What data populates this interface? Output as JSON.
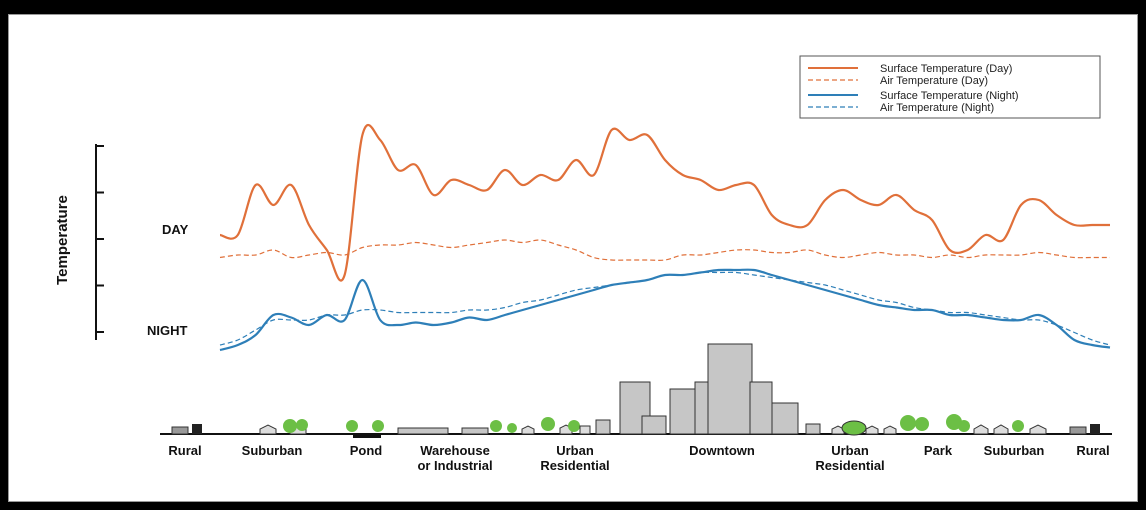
{
  "colors": {
    "day": "#e0703a",
    "night": "#2e7fb8",
    "building": "#c6c6c6",
    "tree": "#6cbf45"
  },
  "chart_data": {
    "type": "line",
    "ylabel": "Temperature",
    "y_row_labels": {
      "day": "DAY",
      "night": "NIGHT"
    },
    "legend": {
      "placement": "top-right",
      "entries": [
        "Surface Temperature (Day)",
        "Air Temperature  (Day)",
        "Surface Temperature (Night)",
        "Air Temperature (Night)"
      ]
    },
    "x_zones": [
      {
        "lines": [
          "Rural"
        ]
      },
      {
        "lines": [
          "Suburban"
        ]
      },
      {
        "lines": [
          "Pond"
        ]
      },
      {
        "lines": [
          "Warehouse",
          "or Industrial"
        ]
      },
      {
        "lines": [
          "Urban",
          "Residential"
        ]
      },
      {
        "lines": [
          "Downtown"
        ]
      },
      {
        "lines": [
          "Urban",
          "Residential"
        ]
      },
      {
        "lines": [
          "Park"
        ]
      },
      {
        "lines": [
          "Suburban"
        ]
      },
      {
        "lines": [
          "Rural"
        ]
      }
    ],
    "ylim": [
      0,
      5
    ],
    "x": [
      0,
      2,
      4,
      6,
      8,
      10,
      12,
      14,
      16,
      18,
      20,
      22,
      24,
      26,
      28,
      30,
      32,
      34,
      36,
      38,
      40,
      42,
      44,
      46,
      48,
      50,
      52,
      54,
      56,
      58,
      60,
      62,
      64,
      66,
      68,
      70,
      72,
      74,
      76,
      78,
      80,
      82,
      84,
      86,
      88,
      90,
      92,
      94,
      96,
      98,
      100
    ],
    "series": [
      {
        "name": "Surface Temperature (Day)",
        "style": "solid",
        "values": [
          2.3,
          2.3,
          3.3,
          2.9,
          3.3,
          2.5,
          2.0,
          1.5,
          4.3,
          4.2,
          3.6,
          3.7,
          3.1,
          3.4,
          3.3,
          3.2,
          3.6,
          3.3,
          3.5,
          3.4,
          3.8,
          3.5,
          4.4,
          4.2,
          4.3,
          3.8,
          3.5,
          3.4,
          3.2,
          3.3,
          3.3,
          2.7,
          2.5,
          2.5,
          3.0,
          3.2,
          3.0,
          2.9,
          3.1,
          2.8,
          2.6,
          2.0,
          2.0,
          2.3,
          2.2,
          2.9,
          3.0,
          2.7,
          2.5,
          2.5,
          2.5
        ]
      },
      {
        "name": "Air Temperature  (Day)",
        "style": "dashed",
        "values": [
          1.85,
          1.9,
          1.9,
          2.0,
          1.85,
          1.9,
          1.95,
          1.9,
          2.05,
          2.1,
          2.1,
          2.15,
          2.1,
          2.05,
          2.1,
          2.15,
          2.2,
          2.15,
          2.2,
          2.1,
          2.0,
          1.85,
          1.8,
          1.8,
          1.8,
          1.8,
          1.9,
          1.9,
          1.95,
          2.0,
          2.0,
          1.95,
          1.95,
          2.0,
          1.9,
          1.85,
          1.9,
          1.95,
          1.9,
          1.9,
          1.85,
          1.9,
          1.85,
          1.9,
          1.9,
          1.9,
          1.95,
          1.9,
          1.85,
          1.85,
          1.85
        ]
      },
      {
        "name": "Surface Temperature (Night)",
        "style": "solid",
        "values": [
          0.0,
          0.1,
          0.3,
          0.7,
          0.65,
          0.5,
          0.7,
          0.6,
          1.4,
          0.6,
          0.5,
          0.55,
          0.5,
          0.55,
          0.65,
          0.6,
          0.7,
          0.8,
          0.9,
          1.0,
          1.1,
          1.2,
          1.3,
          1.35,
          1.4,
          1.5,
          1.5,
          1.55,
          1.6,
          1.6,
          1.6,
          1.5,
          1.4,
          1.3,
          1.2,
          1.1,
          1.0,
          0.9,
          0.85,
          0.8,
          0.8,
          0.7,
          0.7,
          0.65,
          0.6,
          0.6,
          0.7,
          0.5,
          0.2,
          0.1,
          0.05
        ]
      },
      {
        "name": "Air Temperature (Night)",
        "style": "dashed",
        "values": [
          0.1,
          0.2,
          0.4,
          0.6,
          0.6,
          0.6,
          0.7,
          0.7,
          0.8,
          0.8,
          0.75,
          0.75,
          0.75,
          0.75,
          0.8,
          0.8,
          0.85,
          0.95,
          1.0,
          1.1,
          1.2,
          1.25,
          1.3,
          1.35,
          1.4,
          1.5,
          1.5,
          1.55,
          1.55,
          1.55,
          1.5,
          1.45,
          1.4,
          1.35,
          1.3,
          1.2,
          1.1,
          1.0,
          0.95,
          0.85,
          0.8,
          0.75,
          0.75,
          0.7,
          0.65,
          0.6,
          0.6,
          0.5,
          0.35,
          0.2,
          0.1
        ]
      }
    ]
  }
}
